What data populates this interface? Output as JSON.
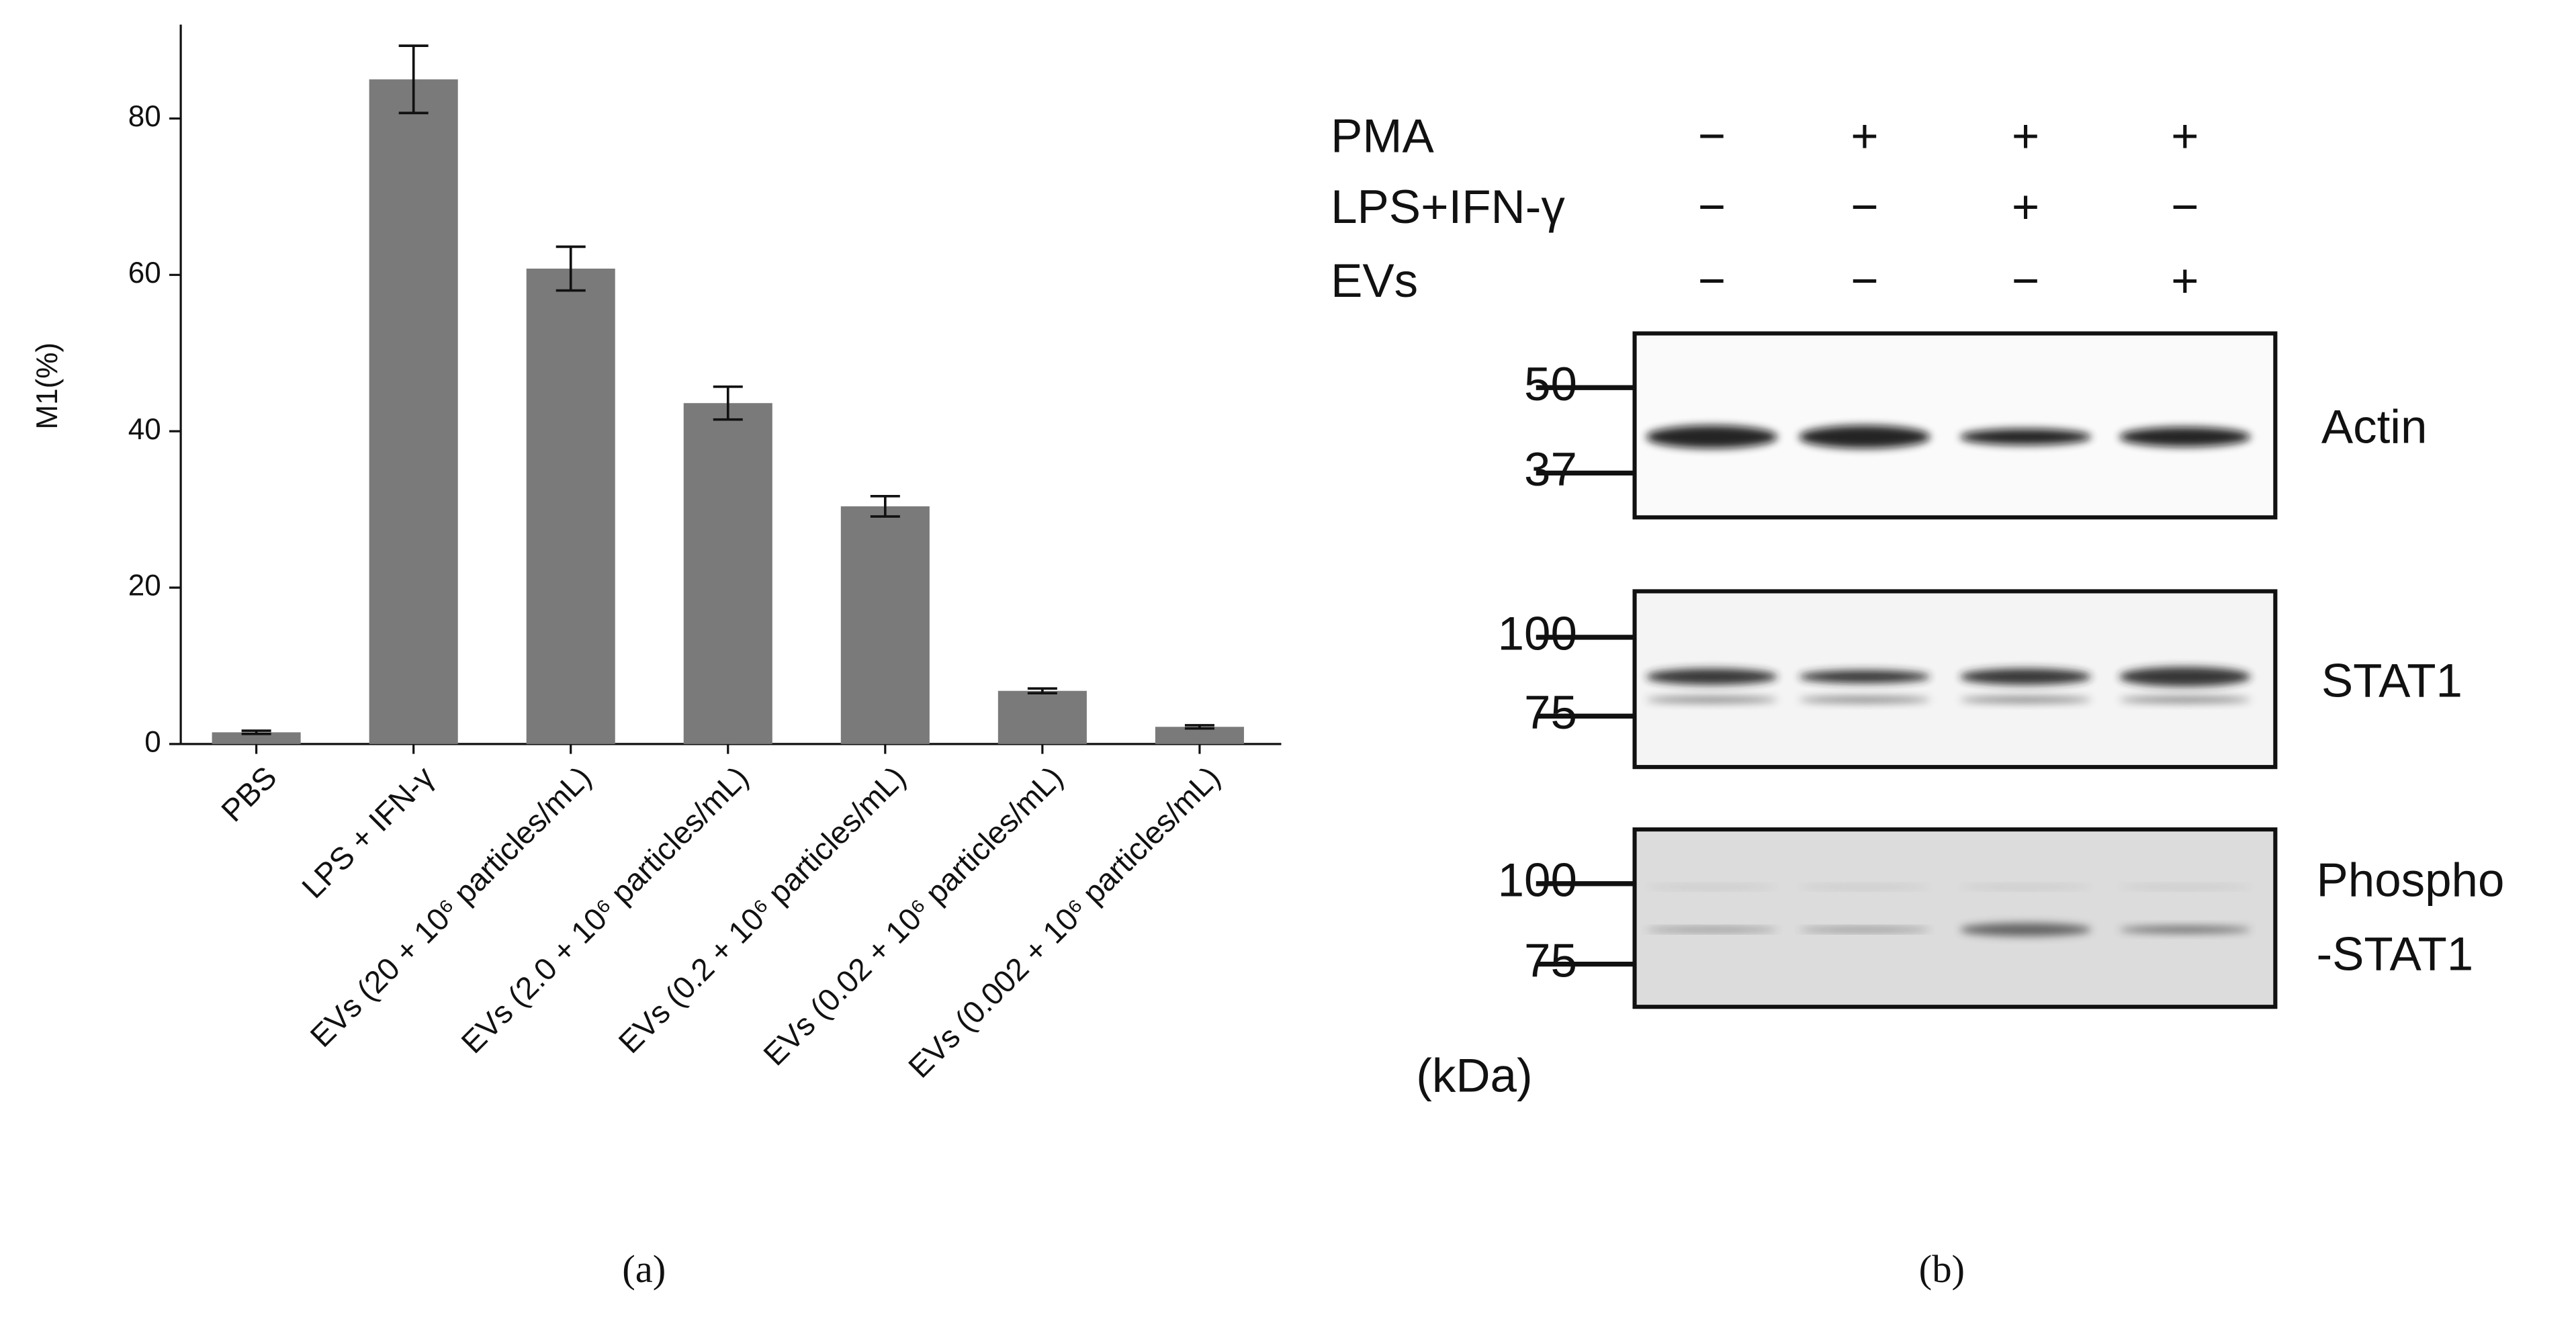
{
  "chart_data": {
    "type": "bar",
    "y_label": "M1(%)",
    "panel_label": "(a)",
    "categories": [
      "PBS",
      "LPS + IFN-γ",
      "EVs (20 + 10⁶ particles/mL)",
      "EVs (2.0 + 10⁶ particles/mL)",
      "EVs (0.2 + 10⁶ particles/mL)",
      "EVs (0.02 + 10⁶ particles/mL)",
      "EVs (0.002 + 10⁶ particles/mL)"
    ],
    "values": [
      1.5,
      85,
      60.8,
      43.6,
      30.4,
      6.8,
      2.2
    ],
    "errors": [
      0.2,
      4.3,
      2.8,
      2.1,
      1.3,
      0.3,
      0.2
    ],
    "color": "#7a7a7a",
    "ylim": [
      0,
      92
    ],
    "yticks": [
      0,
      20,
      40,
      60,
      80
    ]
  },
  "blot": {
    "panel_label": "(b)",
    "header": {
      "rows": [
        {
          "label": "PMA",
          "signs": [
            "−",
            "+",
            "+",
            "+"
          ]
        },
        {
          "label": "LPS+IFN-γ",
          "signs": [
            "−",
            "−",
            "+",
            "−"
          ]
        },
        {
          "label": "EVs",
          "signs": [
            "−",
            "−",
            "−",
            "+"
          ]
        }
      ]
    },
    "panels": [
      {
        "name": "Actin",
        "markers": [
          "50",
          "37"
        ]
      },
      {
        "name": "STAT1",
        "markers": [
          "100",
          "75"
        ]
      },
      {
        "name_lines": [
          "Phospho",
          "-STAT1"
        ],
        "markers": [
          "100",
          "75"
        ]
      }
    ],
    "unit": "(kDa)"
  }
}
